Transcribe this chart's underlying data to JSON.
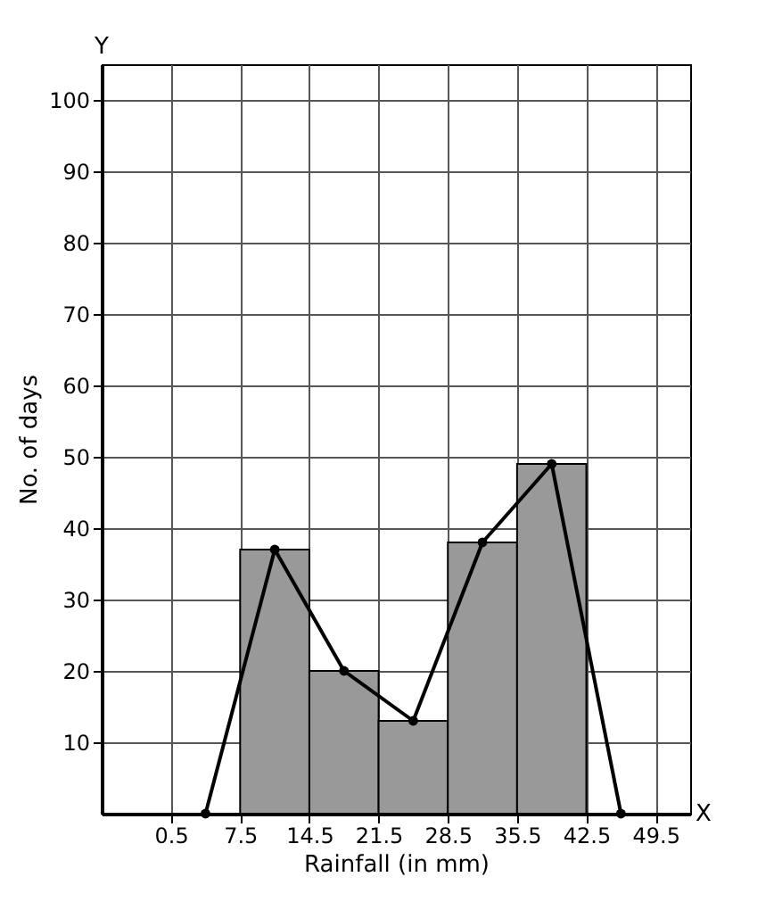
{
  "chart_data": {
    "type": "histogram",
    "xlabel": "Rainfall (in mm)",
    "ylabel": "No. of days",
    "bins": [
      7.5,
      14.5,
      21.5,
      28.5,
      35.5,
      42.5
    ],
    "values": [
      37,
      20,
      13,
      38,
      49
    ],
    "color": "#999999",
    "series": [
      {
        "type": "line",
        "x": [
          4,
          11,
          18,
          25,
          32,
          39,
          46
        ],
        "values": [
          0,
          37,
          20,
          13,
          38,
          49,
          0
        ],
        "color": "#000000"
      }
    ],
    "marker": "circle",
    "grid": true,
    "xlim": [
      -6.5,
      53
    ],
    "xticks": [
      0.5,
      7.5,
      14.5,
      21.5,
      28.5,
      35.5,
      42.5,
      49.5
    ],
    "ylim": [
      0,
      105
    ],
    "yticks": [
      10,
      20,
      30,
      40,
      50,
      60,
      70,
      80,
      90,
      100
    ],
    "annotations": [
      "X",
      "Y"
    ]
  }
}
